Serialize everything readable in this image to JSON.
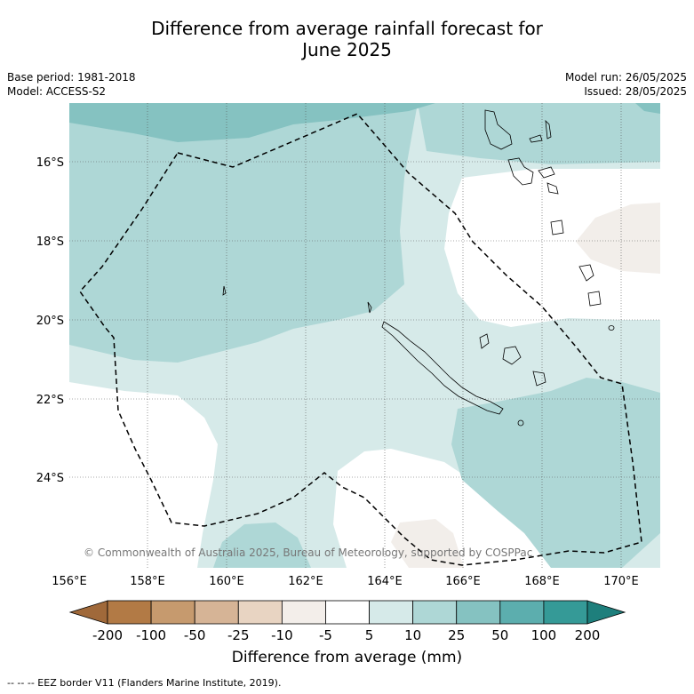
{
  "title": "Difference from average rainfall forecast for June 2025",
  "title_line1": "Difference from average rainfall forecast for",
  "title_line2": "June 2025",
  "base_period": "Base period: 1981-2018",
  "model": "Model: ACCESS-S2",
  "model_run": "Model run: 26/05/2025",
  "issued": "Issued: 28/05/2025",
  "copyright": "© Commonwealth of Australia 2025, Bureau of Meteorology, supported by COSPPac",
  "x_ticks": [
    "156°E",
    "158°E",
    "160°E",
    "162°E",
    "164°E",
    "166°E",
    "168°E",
    "170°E"
  ],
  "y_ticks": [
    "16°S",
    "18°S",
    "20°S",
    "22°S",
    "24°S"
  ],
  "colorbar": {
    "label": "Difference from average (mm)",
    "ticks": [
      "-200",
      "-100",
      "-50",
      "-25",
      "-10",
      "-5",
      "5",
      "10",
      "25",
      "50",
      "100",
      "200"
    ],
    "colors": [
      "#a0693a",
      "#b27a45",
      "#c69a6e",
      "#d6b496",
      "#e8d4c2",
      "#f3eeea",
      "#ffffff",
      "#d6eae9",
      "#aed7d6",
      "#85c2c1",
      "#5caeae",
      "#359a97",
      "#1e7f7c"
    ]
  },
  "footer": "--  --  -- EEZ border V11 (Flanders Marine Institute, 2019).",
  "map_colors": {
    "bin_5_10": "#d6eae9",
    "bin_10_25": "#aed7d6",
    "bin_25_50": "#85c2c1",
    "bin_neg10_neg5": "#f2eeea",
    "grid": "#555555"
  }
}
